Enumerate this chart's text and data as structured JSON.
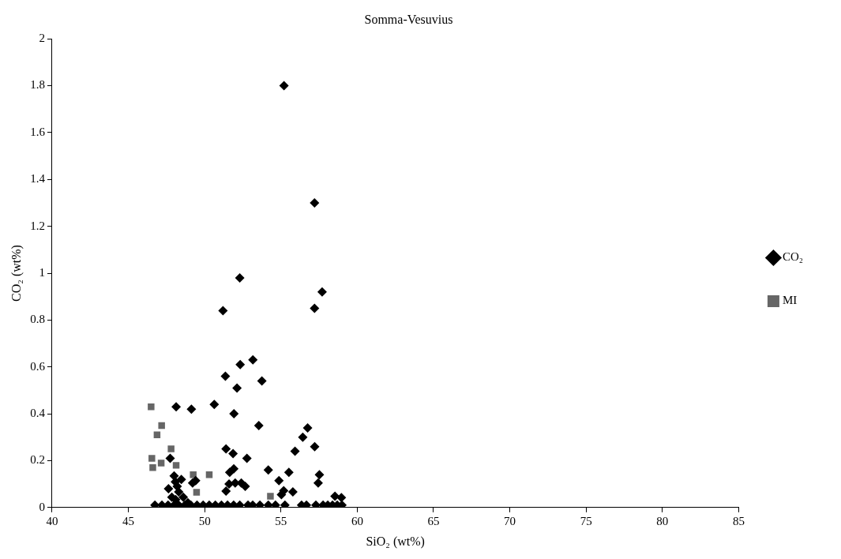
{
  "chart_data": {
    "type": "scatter",
    "title": "Somma-Vesuvius",
    "xlabel": "SiO₂ (wt%)",
    "ylabel": "CO₂ (wt%)",
    "xlim": [
      40,
      85
    ],
    "xticks": [
      40,
      45,
      50,
      55,
      60,
      65,
      70,
      75,
      80,
      85
    ],
    "ylim": [
      0,
      2
    ],
    "yticks": [
      0,
      0.2,
      0.4,
      0.6,
      0.8,
      1,
      1.2,
      1.4,
      1.6,
      1.8,
      2
    ],
    "grid": false,
    "legend": "right",
    "series": [
      {
        "name": "CO₂",
        "color": "#000000",
        "marker": "diamond",
        "x": [
          55.2,
          57.2,
          52.3,
          57.7,
          51.2,
          57.2,
          53.16,
          52.33,
          51.36,
          53.75,
          52.12,
          50.63,
          48.13,
          49.13,
          51.92,
          53.55,
          51.4,
          51.86,
          52.77,
          47.74,
          51.91,
          54.17,
          51.64,
          55.52,
          55.92,
          56.43,
          56.75,
          57.21,
          57.52,
          57.44,
          54.87,
          49.41,
          49.21,
          51.6,
          52.0,
          52.4,
          52.66,
          51.4,
          47.63,
          48.08,
          48.2,
          48.47,
          48.0,
          48.3,
          47.85,
          48.6,
          48.1,
          48.9,
          55.78,
          55.18,
          55.03,
          58.54,
          58.96,
          46.74,
          47.2,
          47.6,
          48.0,
          48.3,
          48.7,
          49.1,
          49.5,
          49.9,
          50.3,
          50.7,
          51.1,
          51.5,
          51.9,
          52.3,
          52.84,
          53.15,
          53.62,
          54.17,
          54.64,
          55.26,
          56.35,
          56.67,
          57.29,
          57.76,
          58.07,
          58.38,
          58.69,
          59.0
        ],
        "values": [
          1.8,
          1.3,
          0.98,
          0.92,
          0.84,
          0.85,
          0.63,
          0.61,
          0.56,
          0.54,
          0.51,
          0.44,
          0.43,
          0.42,
          0.4,
          0.35,
          0.25,
          0.23,
          0.21,
          0.21,
          0.165,
          0.16,
          0.15,
          0.15,
          0.24,
          0.3,
          0.34,
          0.26,
          0.14,
          0.105,
          0.115,
          0.115,
          0.105,
          0.1,
          0.105,
          0.105,
          0.09,
          0.07,
          0.08,
          0.11,
          0.09,
          0.12,
          0.135,
          0.067,
          0.044,
          0.044,
          0.034,
          0.02,
          0.067,
          0.072,
          0.055,
          0.048,
          0.042,
          0.01,
          0.01,
          0.01,
          0.01,
          0.01,
          0.01,
          0.01,
          0.01,
          0.01,
          0.01,
          0.01,
          0.01,
          0.01,
          0.01,
          0.01,
          0.01,
          0.01,
          0.01,
          0.01,
          0.01,
          0.01,
          0.01,
          0.01,
          0.01,
          0.01,
          0.01,
          0.01,
          0.01,
          0.01
        ]
      },
      {
        "name": "MI",
        "color": "#666666",
        "marker": "square",
        "x": [
          46.49,
          47.18,
          46.88,
          47.8,
          46.54,
          47.15,
          46.6,
          48.13,
          49.25,
          50.3,
          49.47,
          54.31
        ],
        "values": [
          0.43,
          0.35,
          0.31,
          0.25,
          0.21,
          0.19,
          0.17,
          0.18,
          0.14,
          0.14,
          0.065,
          0.048
        ]
      }
    ]
  }
}
